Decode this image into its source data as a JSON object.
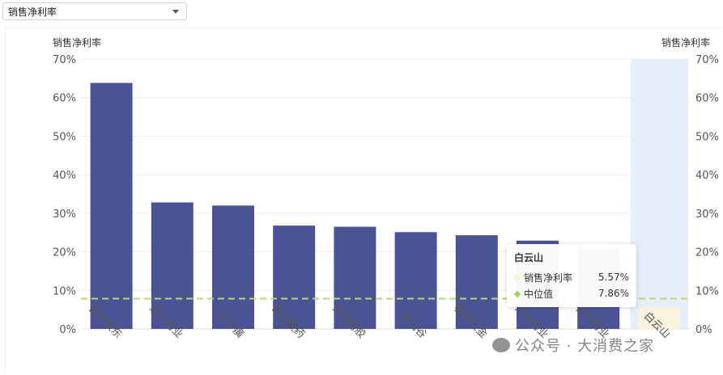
{
  "selector": {
    "value": "销售净利率",
    "icon": "chevron-down-icon"
  },
  "chart_data": {
    "type": "bar",
    "left_axis_title": "销售净利率",
    "right_axis_title": "销售净利率",
    "categories": [
      "吉林敖东",
      "济川药业",
      "片仔癀",
      "奇正藏药",
      "东阿阿胶",
      "寿仙谷",
      "桂林三金",
      "江中药业",
      "佐力药业",
      "白云山"
    ],
    "series": [
      {
        "name": "销售净利率",
        "values": [
          63.8,
          32.8,
          32.0,
          26.8,
          26.5,
          25.1,
          24.3,
          22.9,
          20.9,
          5.57
        ]
      }
    ],
    "median": {
      "name": "中位值",
      "value": 7.86
    },
    "y_ticks": [
      "0%",
      "10%",
      "20%",
      "30%",
      "40%",
      "50%",
      "60%",
      "70%"
    ],
    "ylim": [
      0,
      70
    ],
    "highlighted_category": "白云山",
    "colors": {
      "bar": "#4a5396",
      "highlight_bar": "#fbf3dc",
      "highlight_band": "#e6edfb",
      "median_line": "#b5d96b",
      "grid": "#eeeeee"
    }
  },
  "tooltip": {
    "title": "白云山",
    "rows": [
      {
        "label": "销售净利率",
        "value": "5.57%"
      },
      {
        "label": "中位值",
        "value": "7.86%"
      }
    ]
  },
  "watermark": "公众号 · 大消费之家"
}
